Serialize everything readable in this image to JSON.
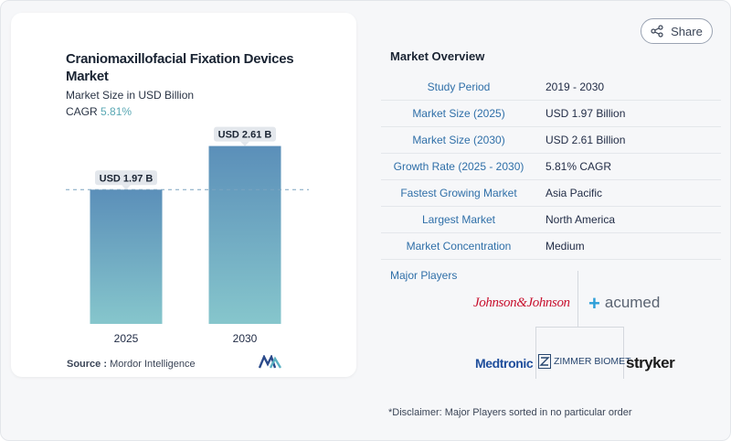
{
  "chart": {
    "title": "Craniomaxillofacial Fixation Devices Market",
    "subtitle": "Market Size in USD Billion",
    "cagr_label": "CAGR",
    "cagr_value": "5.81%",
    "source_label": "Source :",
    "source_value": "Mordor Intelligence",
    "colors": {
      "bar_top": "#5b8fb9",
      "bar_bottom": "#86c6cc",
      "label_bg": "#e3e7ec",
      "dashed": "#7aa4bf"
    }
  },
  "chart_data": {
    "type": "bar",
    "categories": [
      "2025",
      "2030"
    ],
    "values": [
      1.97,
      2.61
    ],
    "data_labels": [
      "USD 1.97 B",
      "USD 2.61 B"
    ],
    "ylim": [
      0,
      2.9
    ],
    "xlabel": "",
    "ylabel": ""
  },
  "share": {
    "label": "Share",
    "icon": "share-icon"
  },
  "overview": {
    "title": "Market Overview",
    "rows": [
      {
        "key": "Study Period",
        "value": "2019 - 2030"
      },
      {
        "key": "Market Size (2025)",
        "value": "USD 1.97 Billion"
      },
      {
        "key": "Market Size (2030)",
        "value": "USD 2.61 Billion"
      },
      {
        "key": "Growth Rate (2025 - 2030)",
        "value": "5.81% CAGR"
      },
      {
        "key": "Fastest Growing Market",
        "value": "Asia Pacific"
      },
      {
        "key": "Largest Market",
        "value": "North America"
      },
      {
        "key": "Market Concentration",
        "value": "Medium"
      }
    ]
  },
  "players": {
    "title": "Major Players",
    "items": [
      "Johnson&Johnson",
      "acumed",
      "Medtronic",
      "ZIMMER BIOMET",
      "stryker"
    ]
  },
  "disclaimer": "*Disclaimer: Major Players sorted in no particular order"
}
